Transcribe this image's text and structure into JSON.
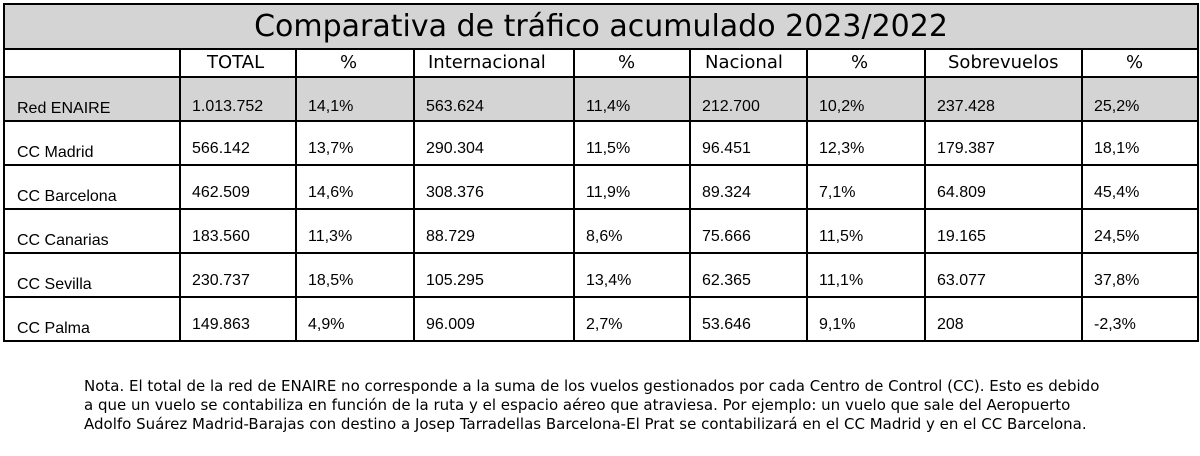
{
  "title": "Comparativa de tráfico acumulado 2023/2022",
  "columns": [
    "TOTAL",
    "%",
    "Internacional",
    "%",
    "Nacional",
    "%",
    "Sobrevuelos",
    "%"
  ],
  "rows": [
    {
      "label": "Red ENAIRE",
      "total": "1.013.752",
      "total_pct": "14,1%",
      "internacional": "563.624",
      "internacional_pct": "11,4%",
      "nacional": "212.700",
      "nacional_pct": "10,2%",
      "sobrevuelos": "237.428",
      "sobrevuelos_pct": "25,2%"
    },
    {
      "label": "CC Madrid",
      "total": "566.142",
      "total_pct": "13,7%",
      "internacional": "290.304",
      "internacional_pct": "11,5%",
      "nacional": "96.451",
      "nacional_pct": "12,3%",
      "sobrevuelos": "179.387",
      "sobrevuelos_pct": "18,1%"
    },
    {
      "label": "CC Barcelona",
      "total": "462.509",
      "total_pct": "14,6%",
      "internacional": "308.376",
      "internacional_pct": "11,9%",
      "nacional": "89.324",
      "nacional_pct": "7,1%",
      "sobrevuelos": "64.809",
      "sobrevuelos_pct": "45,4%"
    },
    {
      "label": "CC Canarias",
      "total": "183.560",
      "total_pct": "11,3%",
      "internacional": "88.729",
      "internacional_pct": "8,6%",
      "nacional": "75.666",
      "nacional_pct": "11,5%",
      "sobrevuelos": "19.165",
      "sobrevuelos_pct": "24,5%"
    },
    {
      "label": "CC Sevilla",
      "total": "230.737",
      "total_pct": "18,5%",
      "internacional": "105.295",
      "internacional_pct": "13,4%",
      "nacional": "62.365",
      "nacional_pct": "11,1%",
      "sobrevuelos": "63.077",
      "sobrevuelos_pct": "37,8%"
    },
    {
      "label": "CC Palma",
      "total": "149.863",
      "total_pct": "4,9%",
      "internacional": "96.009",
      "internacional_pct": "2,7%",
      "nacional": "53.646",
      "nacional_pct": "9,1%",
      "sobrevuelos": "208",
      "sobrevuelos_pct": "-2,3%"
    }
  ],
  "footnote": {
    "line1": "Nota. El total de la red de ENAIRE no corresponde a la suma de los vuelos gestionados por cada Centro de Control (CC). Esto es debido",
    "line2": "a que un vuelo se contabiliza en función de la ruta y el espacio aéreo que atraviesa. Por ejemplo: un vuelo que sale del Aeropuerto",
    "line3": "Adolfo Suárez Madrid-Barajas con destino a Josep Tarradellas Barcelona-El Prat se contabilizará en el CC Madrid y en el CC Barcelona."
  },
  "colors": {
    "header_fill": "#d4d4d4",
    "border": "#000000"
  }
}
